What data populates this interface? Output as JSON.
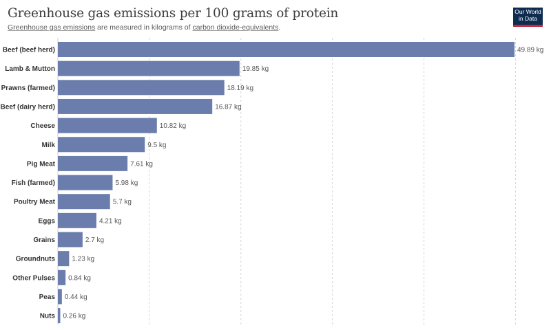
{
  "header": {
    "title": "Greenhouse gas emissions per 100 grams of protein",
    "subtitle_part1": "Greenhouse gas emissions",
    "subtitle_part2": " are measured in kilograms of ",
    "subtitle_part3": "carbon dioxide-equivalents",
    "subtitle_part4": "."
  },
  "logo": {
    "line1": "Our World",
    "line2": "in Data"
  },
  "colors": {
    "bar": "#6b7dac",
    "logo_bg": "#0e2c52",
    "logo_accent": "#c8243a"
  },
  "chart_data": {
    "type": "bar",
    "orientation": "horizontal",
    "title": "Greenhouse gas emissions per 100 grams of protein",
    "unit": "kg",
    "categories": [
      "Beef (beef herd)",
      "Lamb & Mutton",
      "Prawns (farmed)",
      "Beef (dairy herd)",
      "Cheese",
      "Milk",
      "Pig Meat",
      "Fish (farmed)",
      "Poultry Meat",
      "Eggs",
      "Grains",
      "Groundnuts",
      "Other Pulses",
      "Peas",
      "Nuts"
    ],
    "values": [
      49.89,
      19.85,
      18.19,
      16.87,
      10.82,
      9.5,
      7.61,
      5.98,
      5.7,
      4.21,
      2.7,
      1.23,
      0.84,
      0.44,
      0.26
    ],
    "value_labels": [
      "49.89 kg",
      "19.85 kg",
      "18.19 kg",
      "16.87 kg",
      "10.82 kg",
      "9.5 kg",
      "7.61 kg",
      "5.98 kg",
      "5.7 kg",
      "4.21 kg",
      "2.7 kg",
      "1.23 kg",
      "0.84 kg",
      "0.44 kg",
      "0.26 kg"
    ],
    "xlim": [
      0,
      50
    ],
    "gridlines": [
      10,
      20,
      30,
      40,
      50
    ],
    "grid": true,
    "legend": "none"
  }
}
